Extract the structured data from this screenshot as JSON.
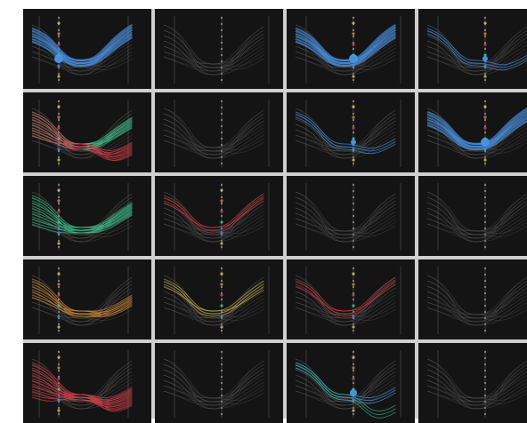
{
  "figure": {
    "rows": 5,
    "cols": 4,
    "panel_label": "",
    "colors": {
      "background": "#141414",
      "frame": "#cfcfcf",
      "neutral_line": "#5c5c5c",
      "blue": "#4a90e2",
      "green": "#3fbf8f",
      "red": "#d9414b",
      "yellow": "#d9c45a",
      "orange": "#d98b3a"
    },
    "highlights": [
      [
        "blue",
        "none",
        "blue",
        "blue-small"
      ],
      [
        "green-red",
        "none",
        "blue-small",
        "blue"
      ],
      [
        "green",
        "red-small",
        "none",
        "none"
      ],
      [
        "orange",
        "yellow-small",
        "red-small",
        "none"
      ],
      [
        "red",
        "none",
        "blue-small-green",
        "none"
      ]
    ]
  }
}
